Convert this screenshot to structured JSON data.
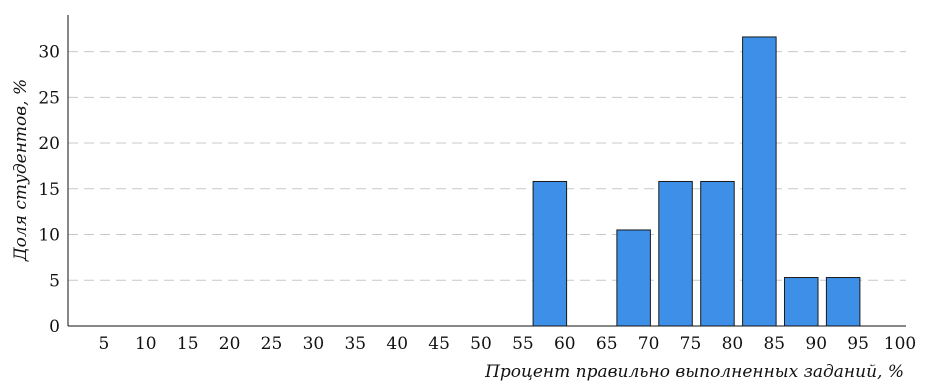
{
  "chart_data": {
    "type": "bar",
    "xlabel": "Процент правильно выполненных заданий, %",
    "ylabel": "Доля студентов, %",
    "x_ticks": [
      "5",
      "10",
      "15",
      "20",
      "25",
      "30",
      "35",
      "40",
      "45",
      "50",
      "55",
      "60",
      "65",
      "70",
      "75",
      "80",
      "85",
      "90",
      "95",
      "100"
    ],
    "y_ticks": [
      "0",
      "5",
      "10",
      "15",
      "20",
      "25",
      "30"
    ],
    "xlim": [
      0,
      100
    ],
    "ylim": [
      0,
      34
    ],
    "bins": [
      {
        "from": 55,
        "to": 60,
        "value": 15.8
      },
      {
        "from": 65,
        "to": 70,
        "value": 10.5
      },
      {
        "from": 70,
        "to": 75,
        "value": 15.8
      },
      {
        "from": 75,
        "to": 80,
        "value": 15.8
      },
      {
        "from": 80,
        "to": 85,
        "value": 31.6
      },
      {
        "from": 85,
        "to": 90,
        "value": 5.3
      },
      {
        "from": 90,
        "to": 95,
        "value": 5.3
      }
    ],
    "bar_color": "#3d8fe8",
    "bar_edge_color": "#1a1a1a",
    "grid": "y-dashed"
  }
}
